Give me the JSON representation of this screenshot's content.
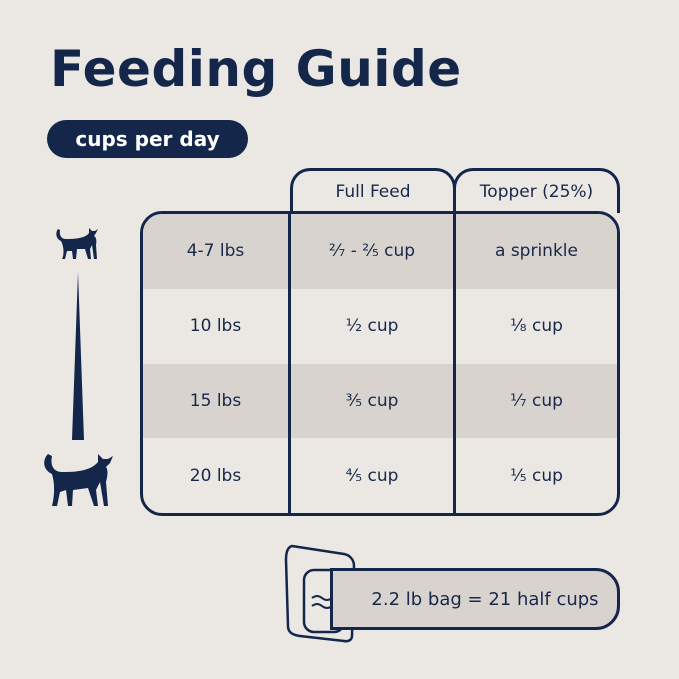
{
  "title": "Feeding Guide",
  "unit_badge": "cups per day",
  "table": {
    "headers": [
      "Full Feed",
      "Topper (25%)"
    ],
    "rows": [
      {
        "weight": "4-7 lbs",
        "full_feed": "²⁄₇ - ²⁄₅ cup",
        "topper": "a sprinkle"
      },
      {
        "weight": "10 lbs",
        "full_feed": "¹⁄₂ cup",
        "topper": "¹⁄₈ cup"
      },
      {
        "weight": "15 lbs",
        "full_feed": "³⁄₅ cup",
        "topper": "¹⁄₇ cup"
      },
      {
        "weight": "20 lbs",
        "full_feed": "⁴⁄₅ cup",
        "topper": "¹⁄₅ cup"
      }
    ]
  },
  "bag_note": "2.2 lb bag = 21 half cups",
  "colors": {
    "navy": "#14264a",
    "background": "#ebe8e4",
    "shade": "#d8d3ce"
  },
  "icons": [
    "small-cat-icon",
    "size-wedge-icon",
    "large-cat-icon",
    "food-bag-icon"
  ]
}
